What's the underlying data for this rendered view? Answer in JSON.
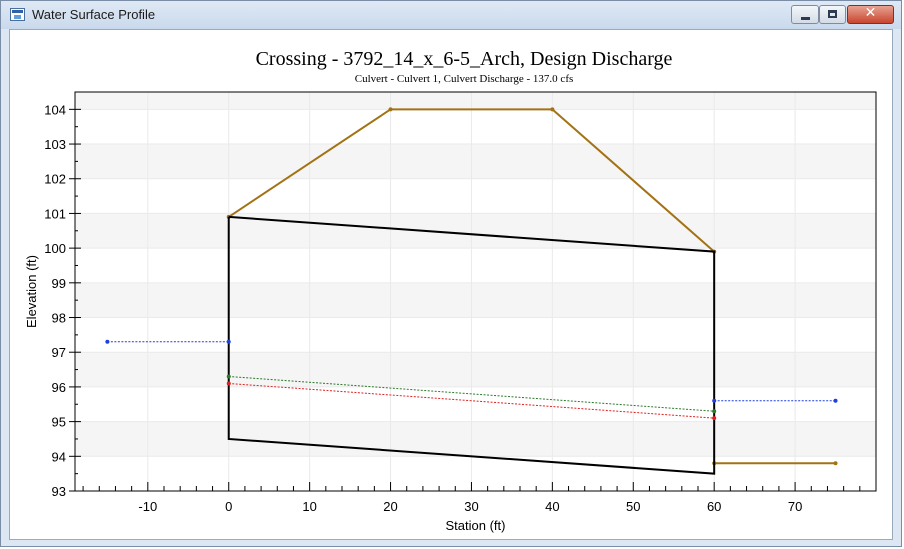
{
  "window": {
    "title": "Water Surface Profile",
    "icon": "chart-window-icon",
    "controls": {
      "minimize": "minimize-icon",
      "maximize": "maximize-icon",
      "close": "close-icon",
      "close_glyph": "✕"
    }
  },
  "chart_data": {
    "type": "line",
    "title": "Crossing - 3792_14_x_6-5_Arch, Design Discharge",
    "subtitle": "Culvert - Culvert 1, Culvert Discharge - 137.0 cfs",
    "xlabel": "Station (ft)",
    "ylabel": "Elevation (ft)",
    "xlim": [
      -19,
      80
    ],
    "ylim": [
      93,
      104.5
    ],
    "xticks": [
      -10,
      0,
      10,
      20,
      30,
      40,
      50,
      60,
      70
    ],
    "yticks": [
      93,
      94,
      95,
      96,
      97,
      98,
      99,
      100,
      101,
      102,
      103,
      104
    ],
    "grid": true,
    "legend": "none",
    "series": [
      {
        "color": "#a37214",
        "style": "solid",
        "markers": true,
        "points": [
          [
            0,
            100.9
          ],
          [
            20,
            104.0
          ],
          [
            40,
            104.0
          ],
          [
            60,
            99.9
          ]
        ]
      },
      {
        "color": "#a37214",
        "style": "solid",
        "markers": true,
        "points": [
          [
            60,
            93.8
          ],
          [
            75,
            93.8
          ]
        ]
      },
      {
        "color": "#000000",
        "style": "solid",
        "markers": false,
        "points": [
          [
            0,
            100.9
          ],
          [
            60,
            99.9
          ],
          [
            60,
            93.5
          ],
          [
            0,
            94.5
          ],
          [
            0,
            100.9
          ]
        ]
      },
      {
        "color": "#2a7a2a",
        "style": "dotted",
        "markers": true,
        "points": [
          [
            0,
            96.3
          ],
          [
            60,
            95.3
          ]
        ]
      },
      {
        "color": "#e02020",
        "style": "dotted",
        "markers": true,
        "points": [
          [
            0,
            96.1
          ],
          [
            60,
            95.1
          ]
        ]
      },
      {
        "color": "#1f3fe0",
        "style": "dotted",
        "markers": true,
        "points": [
          [
            -15,
            97.3
          ],
          [
            0,
            97.3
          ]
        ]
      },
      {
        "color": "#1f3fe0",
        "style": "dotted",
        "markers": true,
        "points": [
          [
            60,
            95.6
          ],
          [
            75,
            95.6
          ]
        ]
      }
    ]
  }
}
